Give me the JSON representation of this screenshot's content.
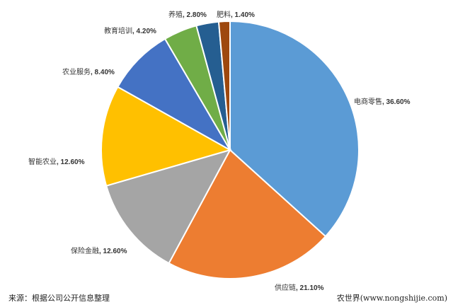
{
  "chart_data": {
    "type": "pie",
    "start": "top",
    "direction": "clockwise",
    "slices": [
      {
        "label": "电商零售",
        "value": 36.6,
        "value_text": "36.60%",
        "color": "#5B9BD5"
      },
      {
        "label": "供应链",
        "value": 21.1,
        "value_text": "21.10%",
        "color": "#ED7D31"
      },
      {
        "label": "保险金融",
        "value": 12.6,
        "value_text": "12.60%",
        "color": "#A5A5A5"
      },
      {
        "label": "智能农业",
        "value": 12.6,
        "value_text": "12.60%",
        "color": "#FFC000"
      },
      {
        "label": "农业服务",
        "value": 8.4,
        "value_text": "8.40%",
        "color": "#4472C4"
      },
      {
        "label": "教育培训",
        "value": 4.2,
        "value_text": "4.20%",
        "color": "#70AD47"
      },
      {
        "label": "养殖",
        "value": 2.8,
        "value_text": "2.80%",
        "color": "#255E91"
      },
      {
        "label": "肥料",
        "value": 1.4,
        "value_text": "1.40%",
        "color": "#9E480E"
      }
    ]
  },
  "footer": {
    "source": "来源：根据公司公开信息整理",
    "credit": "农世界(www.nongshijie.com)"
  }
}
